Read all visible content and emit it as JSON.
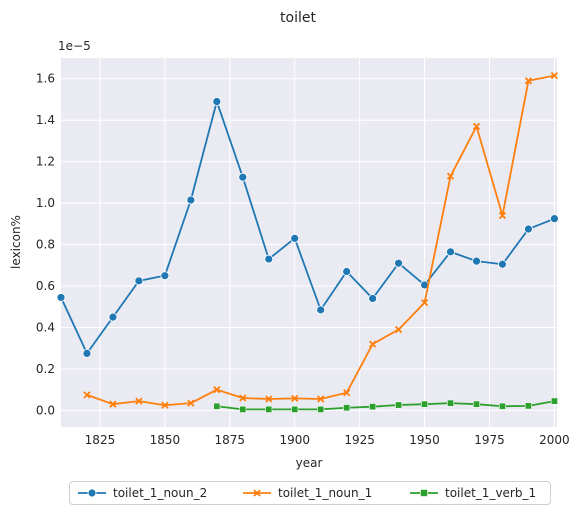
{
  "chart_data": {
    "type": "line",
    "title": "toilet",
    "xlabel": "year",
    "ylabel": "lexicon%",
    "y_offset_label": "1e−5",
    "xlim": [
      1810,
      2001
    ],
    "ylim": [
      -0.08,
      1.7
    ],
    "x_ticks": [
      1825,
      1850,
      1875,
      1900,
      1925,
      1950,
      1975,
      2000
    ],
    "x_tick_labels": [
      "1825",
      "1850",
      "1875",
      "1900",
      "1925",
      "1950",
      "1975",
      "2000"
    ],
    "y_ticks": [
      0,
      0.2,
      0.4,
      0.6,
      0.8,
      1.0,
      1.2,
      1.4,
      1.6
    ],
    "y_tick_labels": [
      "0.0",
      "0.2",
      "0.4",
      "0.6",
      "0.8",
      "1.0",
      "1.2",
      "1.4",
      "1.6"
    ],
    "grid": true,
    "legend_position": "bottom-center",
    "series": [
      {
        "name": "toilet_1_noun_2",
        "color": "#1f77b4",
        "marker": "circle",
        "x": [
          1810,
          1820,
          1830,
          1840,
          1850,
          1860,
          1870,
          1880,
          1890,
          1900,
          1910,
          1920,
          1930,
          1940,
          1950,
          1960,
          1970,
          1980,
          1990,
          2000
        ],
        "y": [
          0.545,
          0.275,
          0.45,
          0.625,
          0.65,
          1.015,
          1.49,
          1.125,
          0.73,
          0.83,
          0.485,
          0.67,
          0.54,
          0.71,
          0.605,
          0.765,
          0.72,
          0.705,
          0.875,
          0.925
        ]
      },
      {
        "name": "toilet_1_noun_1",
        "color": "#ff7f0e",
        "marker": "x",
        "x": [
          1820,
          1830,
          1840,
          1850,
          1860,
          1870,
          1880,
          1890,
          1900,
          1910,
          1920,
          1930,
          1940,
          1950,
          1960,
          1970,
          1980,
          1990,
          2000
        ],
        "y": [
          0.075,
          0.03,
          0.045,
          0.025,
          0.035,
          0.1,
          0.06,
          0.055,
          0.058,
          0.055,
          0.085,
          0.32,
          0.39,
          0.52,
          1.13,
          1.37,
          0.94,
          1.59,
          1.615
        ]
      },
      {
        "name": "toilet_1_verb_1",
        "color": "#2ca02c",
        "marker": "square",
        "x": [
          1870,
          1880,
          1890,
          1900,
          1910,
          1920,
          1930,
          1940,
          1950,
          1960,
          1970,
          1980,
          1990,
          2000
        ],
        "y": [
          0.02,
          0.005,
          0.005,
          0.005,
          0.005,
          0.013,
          0.018,
          0.026,
          0.03,
          0.035,
          0.03,
          0.02,
          0.022,
          0.045
        ]
      }
    ]
  }
}
